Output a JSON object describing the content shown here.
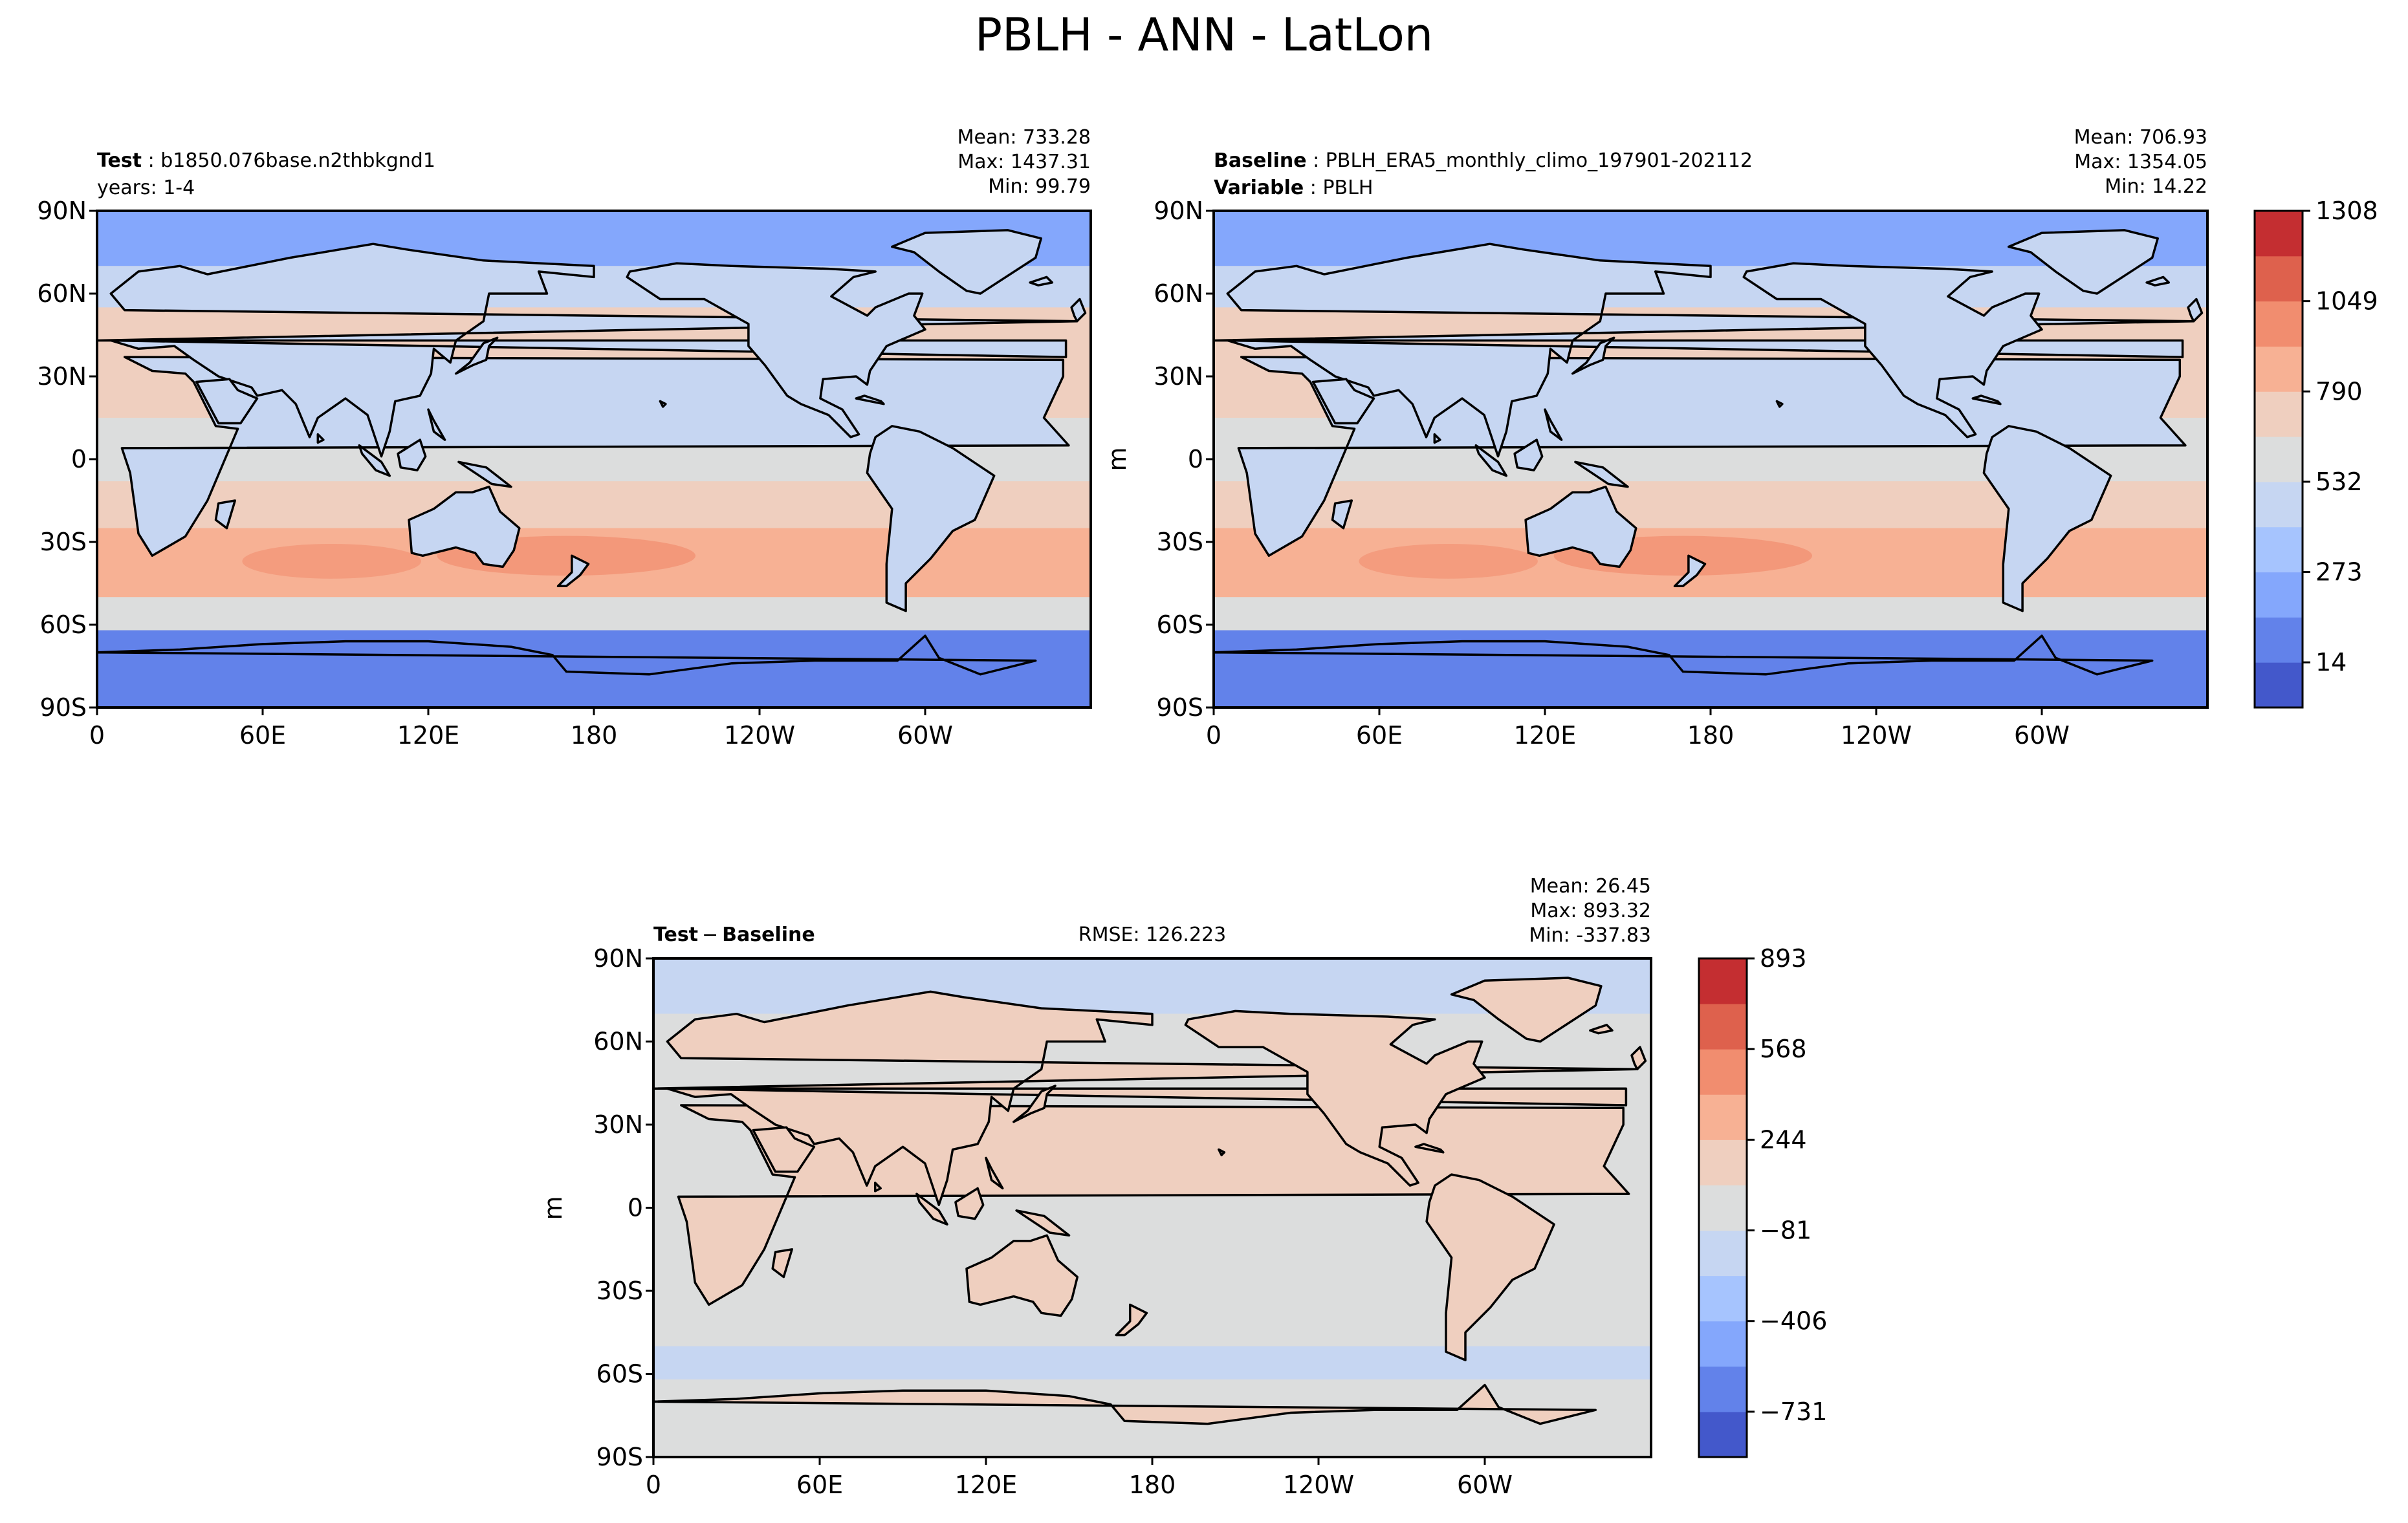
{
  "suptitle": "PBLH - ANN - LatLon",
  "panels": {
    "test": {
      "label_bold": "Test",
      "label_text": "b1850.076base.n2thbkgnd1",
      "line2": "years: 1-4",
      "stats": [
        "Mean: 733.28",
        "Max: 1437.31",
        "Min: 99.79"
      ]
    },
    "baseline": {
      "label_bold": "Baseline",
      "label_text": "PBLH_ERA5_monthly_climo_197901-202112",
      "line2_bold": "Variable",
      "line2_text": "PBLH",
      "stats": [
        "Mean: 706.93",
        "Max: 1354.05",
        "Min: 14.22"
      ],
      "ylabel": "m"
    },
    "diff": {
      "label_bold": "Test",
      "label_op": "−",
      "label_bold2": "Baseline",
      "rmse": "RMSE: 126.223",
      "stats": [
        "Mean: 26.45",
        "Max: 893.32",
        "Min: -337.83"
      ],
      "ylabel": "m"
    }
  },
  "axes": {
    "lat_ticks": [
      "90N",
      "60N",
      "30N",
      "0",
      "30S",
      "60S",
      "90S"
    ],
    "lon_ticks": [
      "0",
      "60E",
      "120E",
      "180",
      "120W",
      "60W"
    ]
  },
  "colorbars": {
    "top": {
      "ticks": [
        "1308",
        "1049",
        "790",
        "532",
        "273",
        "14"
      ]
    },
    "diff": {
      "ticks": [
        "893",
        "568",
        "244",
        "−81",
        "−406",
        "−731"
      ]
    }
  },
  "colors": {
    "levels": [
      "#4358cb",
      "#6282ea",
      "#84a7fc",
      "#a6c4fe",
      "#c6d6f2",
      "#dcdddd",
      "#efcfbf",
      "#f7b194",
      "#f18d6f",
      "#de614d",
      "#c42e31"
    ],
    "coast": "#000000"
  },
  "chart_data": [
    {
      "type": "heatmap",
      "title": "Test: b1850.076base.n2thbkgnd1",
      "subtitle": "years: 1-4",
      "variable": "PBLH",
      "x_ticks": [
        "0",
        "60E",
        "120E",
        "180",
        "120W",
        "60W"
      ],
      "y_ticks": [
        "90N",
        "60N",
        "30N",
        "0",
        "30S",
        "60S",
        "90S"
      ],
      "xlim": [
        0,
        360
      ],
      "ylim": [
        -90,
        90
      ],
      "mean": 733.28,
      "max": 1437.31,
      "min": 99.79,
      "colorbar_ticks": [
        14,
        273,
        532,
        790,
        1049,
        1308
      ]
    },
    {
      "type": "heatmap",
      "title": "Baseline: PBLH_ERA5_monthly_climo_197901-202112",
      "subtitle": "Variable: PBLH",
      "variable": "PBLH",
      "units": "m",
      "x_ticks": [
        "0",
        "60E",
        "120E",
        "180",
        "120W",
        "60W"
      ],
      "y_ticks": [
        "90N",
        "60N",
        "30N",
        "0",
        "30S",
        "60S",
        "90S"
      ],
      "xlim": [
        0,
        360
      ],
      "ylim": [
        -90,
        90
      ],
      "mean": 706.93,
      "max": 1354.05,
      "min": 14.22,
      "colorbar_ticks": [
        14,
        273,
        532,
        790,
        1049,
        1308
      ]
    },
    {
      "type": "heatmap",
      "title": "Test − Baseline",
      "units": "m",
      "rmse": 126.223,
      "x_ticks": [
        "0",
        "60E",
        "120E",
        "180",
        "120W",
        "60W"
      ],
      "y_ticks": [
        "90N",
        "60N",
        "30N",
        "0",
        "30S",
        "60S",
        "90S"
      ],
      "xlim": [
        0,
        360
      ],
      "ylim": [
        -90,
        90
      ],
      "mean": 26.45,
      "max": 893.32,
      "min": -337.83,
      "colorbar_ticks": [
        -731,
        -406,
        -81,
        244,
        568,
        893
      ]
    }
  ]
}
